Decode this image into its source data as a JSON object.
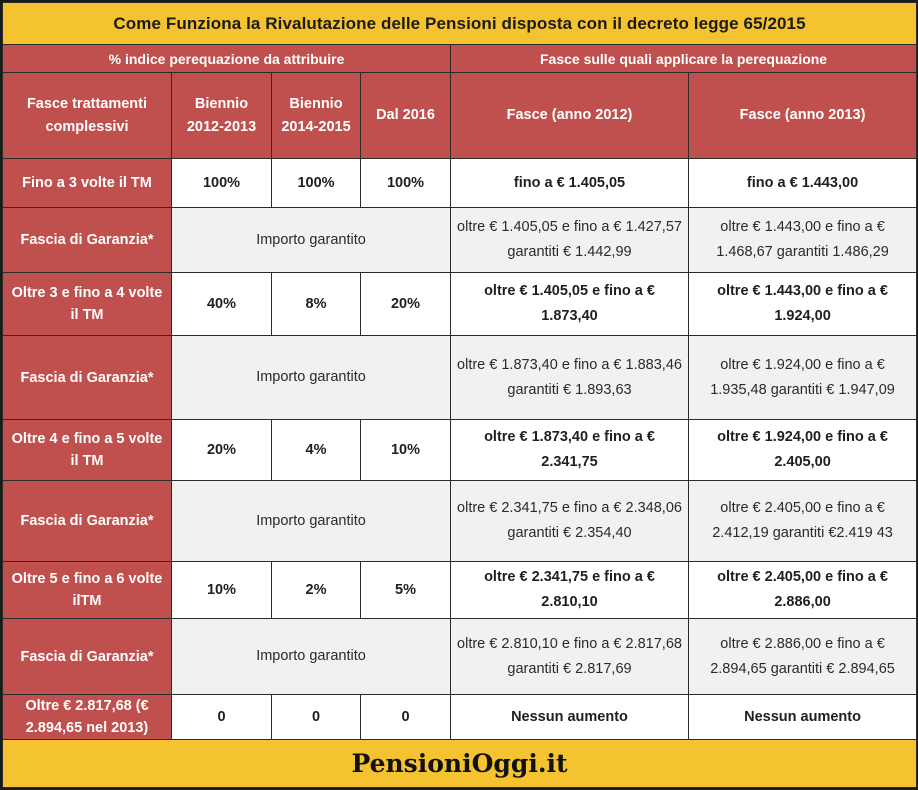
{
  "title": "Come Funziona la Rivalutazione delle Pensioni disposta con il decreto legge 65/2015",
  "group_headers": {
    "perequazione": "% indice perequazione da attribuire",
    "fasce": "Fasce sulle quali applicare la perequazione"
  },
  "columns": [
    "Fasce trattamenti complessivi",
    "Biennio 2012-2013",
    "Biennio 2014-2015",
    "Dal 2016",
    "Fasce (anno 2012)",
    "Fasce (anno 2013)"
  ],
  "rows": [
    {
      "label": "Fino a 3 volte il  TM",
      "b1213": "100%",
      "b1415": "100%",
      "d2016": "100%",
      "f2012": "fino  a € 1.405,05",
      "f2013": "fino a € 1.443,00"
    },
    {
      "label": "Fascia di Garanzia*",
      "garantito": "Importo garantito",
      "f2012": "oltre € 1.405,05 e fino a € 1.427,57 garantiti € 1.442,99",
      "f2013": "oltre € 1.443,00  e fino a € 1.468,67 garantiti 1.486,29"
    },
    {
      "label": "Oltre 3 e fino a 4 volte il TM",
      "b1213": "40%",
      "b1415": "8%",
      "d2016": "20%",
      "f2012": "oltre € 1.405,05 e fino a € 1.873,40",
      "f2013": "oltre € 1.443,00 e fino a € 1.924,00"
    },
    {
      "label": "Fascia di  Garanzia*",
      "garantito": "Importo garantito",
      "f2012": "oltre € 1.873,40  e fino a € 1.883,46 garantiti  € 1.893,63",
      "f2013": "oltre € 1.924,00 e fino a € 1.935,48 garantiti € 1.947,09"
    },
    {
      "label": "Oltre 4 e fino a 5 volte il TM",
      "b1213": "20%",
      "b1415": "4%",
      "d2016": "10%",
      "f2012": "oltre € 1.873,40 e fino a € 2.341,75",
      "f2013": "oltre € 1.924,00 e fino a € 2.405,00"
    },
    {
      "label": "Fascia di  Garanzia*",
      "garantito": "Importo garantito",
      "f2012": "oltre € 2.341,75 e fino a € 2.348,06 garantiti € 2.354,40",
      "f2013": "oltre € 2.405,00 e fino a € 2.412,19 garantiti €2.419 43"
    },
    {
      "label": "Oltre 5 e fino a 6 volte ilTM",
      "b1213": "10%",
      "b1415": "2%",
      "d2016": "5%",
      "f2012": "oltre € 2.341,75 e fino a € 2.810,10",
      "f2013": "oltre € 2.405,00 e fino a € 2.886,00"
    },
    {
      "label": "Fascia di Garanzia*",
      "garantito": "Importo garantito",
      "f2012": "oltre € 2.810,10  e fino a € 2.817,68 garantiti  € 2.817,69",
      "f2013": "oltre € 2.886,00 e fino a € 2.894,65 garantiti € 2.894,65"
    },
    {
      "label": "Oltre € 2.817,68 (€ 2.894,65 nel 2013)",
      "b1213": "0",
      "b1415": "0",
      "d2016": "0",
      "f2012": "Nessun  aumento",
      "f2013": "Nessun aumento"
    }
  ],
  "footer": "PensioniOggi.it"
}
